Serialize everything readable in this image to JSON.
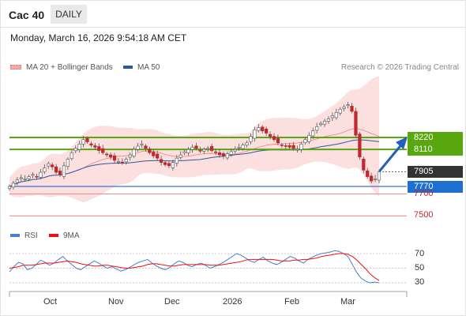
{
  "header": {
    "title": "Cac 40",
    "timeframe": "DAILY"
  },
  "datetime": "Monday, March 16, 2026 9:54:18 AM CET",
  "legend": {
    "bollinger": {
      "label": "MA 20 + Bollinger Bands",
      "color": "#f08080"
    },
    "ma50": {
      "label": "MA 50",
      "color": "#2b5a9b"
    }
  },
  "research": "Research © 2026 Trading Central",
  "price_labels": {
    "r2": "8220",
    "r1": "8110",
    "last": "7905",
    "pivot": "7770",
    "s1": "7700",
    "s2": "7500"
  },
  "rsi_legend": {
    "rsi": {
      "label": "RSI",
      "color": "#4a7fd0"
    },
    "ma9": {
      "label": "9MA",
      "color": "#e11"
    }
  },
  "rsi_ticks": [
    "70",
    "50",
    "30"
  ],
  "months": [
    "Oct",
    "Nov",
    "Dec",
    "2026",
    "Feb",
    "Mar"
  ],
  "colors": {
    "resistance": "#58a70e",
    "pivot": "#3a6fd8",
    "support": "#e07070",
    "up_candle": "#ffffff",
    "down_candle": "#c1272d",
    "arrow": "#2060b8"
  },
  "chart_data": {
    "type": "candlestick",
    "ylim": [
      7440,
      8640
    ],
    "levels": {
      "resistance": [
        8220,
        8110
      ],
      "pivot": 7770,
      "support": [
        7700,
        7500
      ],
      "last": 7905
    },
    "closes": [
      7770,
      7800,
      7830,
      7850,
      7840,
      7860,
      7880,
      7860,
      7900,
      7940,
      7980,
      7950,
      7900,
      7880,
      7960,
      8020,
      8080,
      8120,
      8160,
      8200,
      8180,
      8150,
      8130,
      8100,
      8080,
      8060,
      8040,
      8010,
      8000,
      7990,
      8020,
      8060,
      8110,
      8140,
      8160,
      8120,
      8080,
      8050,
      8030,
      7990,
      7970,
      7960,
      7990,
      8030,
      8060,
      8090,
      8110,
      8130,
      8120,
      8100,
      8110,
      8120,
      8100,
      8080,
      8060,
      8050,
      8070,
      8090,
      8110,
      8130,
      8150,
      8170,
      8230,
      8290,
      8310,
      8280,
      8260,
      8230,
      8200,
      8170,
      8150,
      8140,
      8130,
      8120,
      8110,
      8160,
      8200,
      8240,
      8280,
      8320,
      8350,
      8370,
      8390,
      8420,
      8450,
      8480,
      8500,
      8520,
      8460,
      8240,
      8040,
      7920,
      7860,
      7820,
      7840,
      7905
    ],
    "rsi": [
      45,
      52,
      58,
      56,
      48,
      50,
      55,
      61,
      58,
      54,
      57,
      62,
      66,
      60,
      55,
      50,
      48,
      52,
      56,
      60,
      57,
      53,
      50,
      52,
      49,
      46,
      48,
      51,
      55,
      58,
      60,
      62,
      57,
      53,
      50,
      48,
      51,
      56,
      60,
      58,
      54,
      52,
      55,
      57,
      54,
      50,
      52,
      55,
      58,
      62,
      66,
      70,
      68,
      64,
      60,
      58,
      62,
      65,
      60,
      57,
      55,
      58,
      62,
      66,
      64,
      60,
      57,
      62,
      65,
      68,
      70,
      71,
      72,
      74,
      73,
      70,
      66,
      55,
      44,
      36,
      32,
      30,
      31,
      30
    ],
    "rsi_ma9": [
      50,
      51,
      52,
      54,
      54,
      54,
      55,
      56,
      57,
      57,
      57,
      58,
      59,
      60,
      59,
      58,
      56,
      55,
      54,
      53,
      53,
      54,
      54,
      53,
      52,
      51,
      50,
      50,
      51,
      52,
      53,
      55,
      56,
      56,
      55,
      54,
      53,
      53,
      54,
      55,
      55,
      55,
      55,
      55,
      55,
      54,
      54,
      54,
      55,
      56,
      57,
      58,
      59,
      61,
      62,
      62,
      62,
      62,
      62,
      62,
      61,
      60,
      60,
      60,
      61,
      61,
      62,
      62,
      63,
      64,
      66,
      67,
      68,
      69,
      70,
      70,
      69,
      66,
      61,
      55,
      49,
      42,
      37,
      33
    ]
  }
}
